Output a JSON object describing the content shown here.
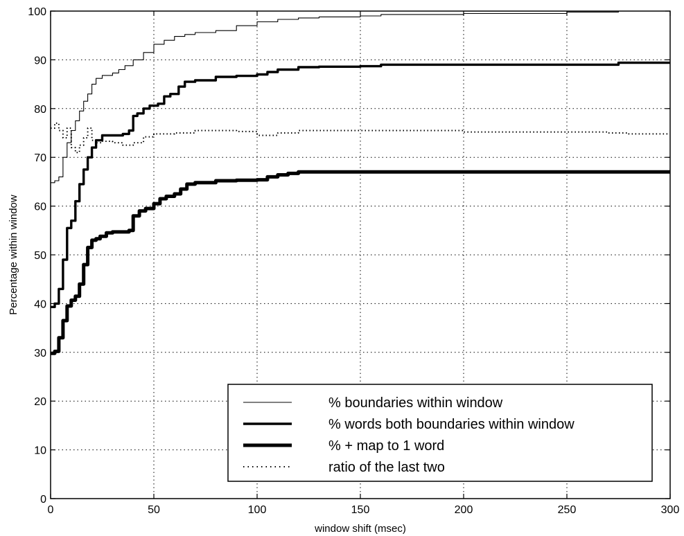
{
  "chart_data": {
    "type": "line",
    "title": "",
    "xlabel": "window shift (msec)",
    "ylabel": "Percentage  within window",
    "xlim": [
      0,
      300
    ],
    "ylim": [
      0,
      100
    ],
    "x_ticks": [
      0,
      50,
      100,
      150,
      200,
      250,
      300
    ],
    "y_ticks": [
      0,
      10,
      20,
      30,
      40,
      50,
      60,
      70,
      80,
      90,
      100
    ],
    "grid": true,
    "legend_position": "bottom-right",
    "series": [
      {
        "name": "% boundaries within window",
        "style": "thin-solid",
        "x": [
          0,
          2,
          4,
          6,
          8,
          10,
          12,
          14,
          16,
          18,
          20,
          22,
          25,
          30,
          33,
          36,
          40,
          45,
          50,
          55,
          60,
          65,
          70,
          80,
          90,
          100,
          110,
          120,
          130,
          150,
          160,
          200,
          250,
          275,
          300
        ],
        "y": [
          64.8,
          65.2,
          66,
          70,
          73,
          75.5,
          77.5,
          79.5,
          81.5,
          83,
          85,
          86.2,
          86.8,
          87.3,
          88,
          88.8,
          90,
          91.5,
          93.2,
          94,
          94.8,
          95.2,
          95.6,
          96,
          97,
          97.8,
          98.3,
          98.6,
          98.8,
          99,
          99.3,
          99.5,
          99.8,
          100,
          100
        ]
      },
      {
        "name": "% words both boundaries within window",
        "style": "thick-solid",
        "x": [
          0,
          2,
          4,
          6,
          8,
          10,
          12,
          14,
          16,
          18,
          20,
          22,
          25,
          30,
          35,
          38,
          40,
          42,
          45,
          48,
          52,
          55,
          58,
          62,
          65,
          70,
          80,
          90,
          100,
          105,
          110,
          120,
          130,
          150,
          160,
          200,
          250,
          275,
          300
        ],
        "y": [
          39.3,
          40,
          43,
          49,
          55.5,
          57,
          61,
          64.5,
          67.5,
          70,
          72,
          73.5,
          74.5,
          74.5,
          74.8,
          75.5,
          78.5,
          79,
          80,
          80.6,
          81,
          82.5,
          83,
          84.5,
          85.5,
          85.8,
          86.5,
          86.7,
          87,
          87.5,
          88,
          88.5,
          88.6,
          88.7,
          89,
          89,
          89,
          89.4,
          89.4
        ]
      },
      {
        "name": "% + map to 1 word",
        "style": "very-thick-solid",
        "x": [
          0,
          2,
          4,
          6,
          8,
          10,
          12,
          14,
          16,
          18,
          20,
          22,
          24,
          27,
          30,
          35,
          38,
          40,
          43,
          46,
          50,
          53,
          56,
          60,
          63,
          66,
          70,
          80,
          90,
          100,
          105,
          110,
          115,
          120,
          300
        ],
        "y": [
          29.8,
          30.2,
          33,
          36.5,
          39.5,
          40.7,
          41.5,
          44,
          48,
          51.5,
          53,
          53.3,
          53.8,
          54.5,
          54.7,
          54.7,
          55,
          58,
          59,
          59.5,
          60.5,
          61.5,
          62,
          62.5,
          63.5,
          64.5,
          64.8,
          65.2,
          65.3,
          65.4,
          66,
          66.4,
          66.7,
          67,
          67
        ]
      },
      {
        "name": "ratio of the last two",
        "style": "dotted",
        "x": [
          0,
          2,
          4,
          6,
          8,
          10,
          12,
          14,
          16,
          18,
          20,
          22,
          25,
          30,
          35,
          40,
          45,
          50,
          60,
          70,
          80,
          90,
          100,
          110,
          120,
          140,
          160,
          200,
          250,
          270,
          280,
          300
        ],
        "y": [
          76,
          77,
          75.5,
          74,
          76,
          72,
          71,
          72.5,
          74,
          76,
          73.5,
          73,
          73.3,
          73,
          72.5,
          73,
          74.2,
          74.8,
          75,
          75.5,
          75.5,
          75.3,
          74.5,
          75,
          75.5,
          75.5,
          75.5,
          75.2,
          75.2,
          75,
          74.8,
          74.8
        ]
      }
    ]
  }
}
